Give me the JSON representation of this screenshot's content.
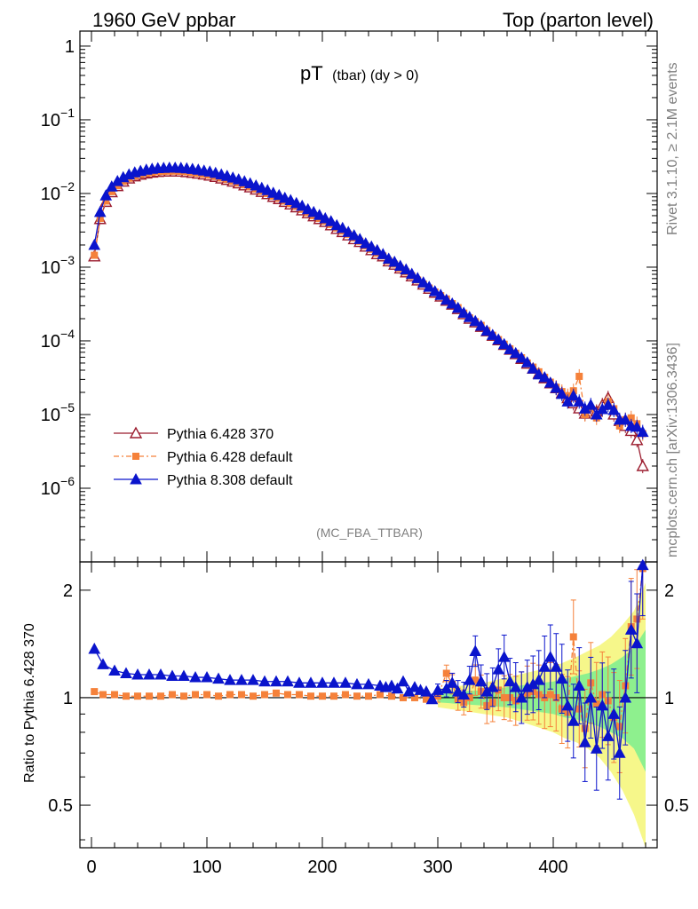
{
  "header": {
    "left": "1960 GeV ppbar",
    "right": "Top (parton level)"
  },
  "plot_title": {
    "main": "pT",
    "sub": "(tbar) (dy > 0)"
  },
  "side_labels": {
    "rivet": "Rivet 3.1.10, ≥ 2.1M events",
    "mcplots": "mcplots.cern.ch [arXiv:1306.3436]"
  },
  "watermark": "(MC_FBA_TTBAR)",
  "ratio_ylabel": "Ratio to Pythia 6.428 370",
  "colors": {
    "p6_370": "#9b1c2e",
    "p6_def": "#f5813a",
    "p8_def": "#0a14cc",
    "band_green": "#8ef08e",
    "band_yellow": "#f6f78a"
  },
  "chart_data": [
    {
      "type": "line",
      "yscale": "log",
      "xlim": [
        -10,
        490
      ],
      "ylim": [
        1e-07,
        1.6
      ],
      "ytick_labels": [
        "1",
        "10^-1",
        "10^-2",
        "10^-3",
        "10^-4",
        "10^-5",
        "10^-6"
      ],
      "legend_position": "lower-left",
      "x": [
        2.5,
        7.5,
        12.5,
        17.5,
        22.5,
        27.5,
        32.5,
        37.5,
        42.5,
        47.5,
        52.5,
        57.5,
        62.5,
        67.5,
        72.5,
        77.5,
        82.5,
        87.5,
        92.5,
        97.5,
        102.5,
        107.5,
        112.5,
        117.5,
        122.5,
        127.5,
        132.5,
        137.5,
        142.5,
        147.5,
        152.5,
        157.5,
        162.5,
        167.5,
        172.5,
        177.5,
        182.5,
        187.5,
        192.5,
        197.5,
        202.5,
        207.5,
        212.5,
        217.5,
        222.5,
        227.5,
        232.5,
        237.5,
        242.5,
        247.5,
        252.5,
        257.5,
        262.5,
        267.5,
        272.5,
        277.5,
        282.5,
        287.5,
        292.5,
        297.5,
        302.5,
        307.5,
        312.5,
        317.5,
        322.5,
        327.5,
        332.5,
        337.5,
        342.5,
        347.5,
        352.5,
        357.5,
        362.5,
        367.5,
        372.5,
        377.5,
        382.5,
        387.5,
        392.5,
        397.5,
        402.5,
        407.5,
        412.5,
        417.5,
        422.5,
        427.5,
        432.5,
        437.5,
        442.5,
        447.5,
        452.5,
        457.5,
        462.5,
        467.5,
        472.5,
        477.5
      ],
      "series": [
        {
          "name": "Pythia 6.428 370",
          "marker": "open-triangle",
          "values": [
            0.0014,
            0.0045,
            0.0077,
            0.0104,
            0.0126,
            0.0145,
            0.016,
            0.0171,
            0.018,
            0.0187,
            0.0192,
            0.0196,
            0.0198,
            0.0199,
            0.0199,
            0.0198,
            0.0195,
            0.0191,
            0.0186,
            0.0181,
            0.0175,
            0.0168,
            0.016,
            0.0153,
            0.0145,
            0.0137,
            0.0129,
            0.0121,
            0.0113,
            0.0105,
            0.0098,
            0.009,
            0.0084,
            0.0077,
            0.0071,
            0.0065,
            0.0059,
            0.0054,
            0.0049,
            0.0045,
            0.0041,
            0.0037,
            0.0033,
            0.003,
            0.0027,
            0.0024,
            0.0022,
            0.0019,
            0.0017,
            0.0015,
            0.0014,
            0.0012,
            0.00108,
            0.00096,
            0.00085,
            0.00075,
            0.00066,
            0.00058,
            0.00051,
            0.00045,
            0.0004,
            0.00035,
            0.00031,
            0.00027,
            0.00023,
            0.0002,
            0.000178,
            0.000155,
            0.000135,
            0.000117,
            0.000102,
            8.8e-05,
            7.6e-05,
            6.6e-05,
            5.7e-05,
            4.9e-05,
            4.2e-05,
            3.6e-05,
            3.1e-05,
            2.65e-05,
            2.28e-05,
            1.95e-05,
            1.67e-05,
            1.42e-05,
            1.21e-05,
            1.03e-05,
            1.25e-05,
            1.1e-05,
            1.35e-05,
            1.68e-05,
            1e-05,
            8.2e-06,
            7e-06,
            6e-06,
            4.5e-06,
            2e-06
          ]
        },
        {
          "name": "Pythia 6.428 default",
          "marker": "filled-square",
          "values": [
            0.00145,
            0.0046,
            0.0079,
            0.0106,
            0.0128,
            0.0147,
            0.0161,
            0.0173,
            0.0182,
            0.0189,
            0.0194,
            0.0198,
            0.02,
            0.0201,
            0.0201,
            0.02,
            0.0197,
            0.0193,
            0.0188,
            0.0183,
            0.0177,
            0.017,
            0.0162,
            0.0155,
            0.0147,
            0.0139,
            0.0131,
            0.0123,
            0.0115,
            0.0107,
            0.01,
            0.0092,
            0.0086,
            0.0079,
            0.0073,
            0.0067,
            0.0061,
            0.0055,
            0.005,
            0.0046,
            0.0042,
            0.0038,
            0.0034,
            0.0031,
            0.0028,
            0.0025,
            0.00225,
            0.00195,
            0.00175,
            0.00155,
            0.00142,
            0.00122,
            0.0011,
            0.00097,
            0.00086,
            0.00076,
            0.00067,
            0.00059,
            0.00052,
            0.00046,
            0.00041,
            0.00037,
            0.00032,
            0.000282,
            0.000238,
            0.000205,
            0.000182,
            0.000162,
            0.000138,
            0.000119,
            0.000104,
            9e-05,
            7.8e-05,
            6.8e-05,
            5.9e-05,
            5e-05,
            4.4e-05,
            3.8e-05,
            3.2e-05,
            2.75e-05,
            2.35e-05,
            2.05e-05,
            1.8e-05,
            2.1e-05,
            3.3e-05,
            1e-05,
            1.2e-05,
            9e-06,
            1.15e-05,
            1.5e-05,
            1.2e-05,
            7e-06,
            8.5e-06,
            9e-06,
            7.5e-06,
            5.5e-06
          ]
        },
        {
          "name": "Pythia 8.308 default",
          "marker": "filled-triangle",
          "values": [
            0.002,
            0.0056,
            0.0094,
            0.0124,
            0.0147,
            0.0166,
            0.0181,
            0.0193,
            0.0202,
            0.021,
            0.0216,
            0.022,
            0.0222,
            0.0223,
            0.0223,
            0.0222,
            0.0219,
            0.0215,
            0.021,
            0.0204,
            0.0198,
            0.019,
            0.0181,
            0.0173,
            0.0164,
            0.0155,
            0.0146,
            0.0137,
            0.0128,
            0.0119,
            0.0111,
            0.0102,
            0.0095,
            0.0087,
            0.0081,
            0.0074,
            0.0068,
            0.0061,
            0.0056,
            0.0051,
            0.0046,
            0.0042,
            0.0037,
            0.0034,
            0.003,
            0.0027,
            0.0024,
            0.0021,
            0.0019,
            0.0017,
            0.0015,
            0.0013,
            0.00118,
            0.00104,
            0.00093,
            0.00081,
            0.00071,
            0.00062,
            0.00054,
            0.00047,
            0.00042,
            0.00036,
            0.00032,
            0.00028,
            0.00024,
            0.00021,
            0.000185,
            0.00016,
            0.000137,
            0.00012,
            0.000104,
            9e-05,
            7.7e-05,
            6.8e-05,
            5.9e-05,
            5.1e-05,
            4.2e-05,
            3.5e-05,
            3.2e-05,
            2.7e-05,
            2.3e-05,
            1.9e-05,
            1.5e-05,
            1.8e-05,
            1.5e-05,
            1.2e-05,
            1.35e-05,
            1e-05,
            1.18e-05,
            1.35e-05,
            1.15e-05,
            8.5e-06,
            8.5e-06,
            7e-06,
            6.8e-06,
            5.8e-06
          ]
        }
      ]
    },
    {
      "type": "line",
      "yscale": "log",
      "xlim": [
        -10,
        490
      ],
      "ylim": [
        0.38,
        2.4
      ],
      "xticks": [
        0,
        100,
        200,
        300,
        400
      ],
      "yticks": [
        0.5,
        1,
        2
      ],
      "ylabel": "Ratio to Pythia 6.428 370",
      "bands": {
        "x": [
          300,
          310,
          320,
          330,
          340,
          350,
          360,
          370,
          380,
          390,
          400,
          410,
          420,
          430,
          440,
          450,
          460,
          470,
          480
        ],
        "green_lo": [
          0.97,
          0.965,
          0.96,
          0.955,
          0.95,
          0.945,
          0.94,
          0.93,
          0.92,
          0.91,
          0.9,
          0.88,
          0.87,
          0.85,
          0.83,
          0.8,
          0.77,
          0.72,
          0.62
        ],
        "green_hi": [
          1.03,
          1.035,
          1.04,
          1.045,
          1.05,
          1.06,
          1.07,
          1.08,
          1.09,
          1.1,
          1.11,
          1.13,
          1.15,
          1.17,
          1.2,
          1.24,
          1.3,
          1.38,
          1.55
        ],
        "yellow_lo": [
          0.94,
          0.93,
          0.92,
          0.91,
          0.9,
          0.89,
          0.88,
          0.86,
          0.84,
          0.82,
          0.8,
          0.77,
          0.75,
          0.72,
          0.68,
          0.62,
          0.55,
          0.47,
          0.35
        ],
        "yellow_hi": [
          1.06,
          1.07,
          1.08,
          1.09,
          1.1,
          1.12,
          1.14,
          1.16,
          1.18,
          1.2,
          1.22,
          1.26,
          1.3,
          1.35,
          1.4,
          1.48,
          1.6,
          1.75,
          2.1
        ]
      },
      "series": [
        {
          "name": "Pythia 6.428 370",
          "values_const": 1.0
        },
        {
          "name": "Pythia 6.428 default",
          "x": [
            2.5,
            10,
            20,
            30,
            40,
            50,
            60,
            70,
            80,
            90,
            100,
            110,
            120,
            130,
            140,
            150,
            160,
            170,
            180,
            190,
            200,
            210,
            220,
            230,
            240,
            250,
            260,
            270,
            280,
            290,
            300,
            307.5,
            312.5,
            317.5,
            322.5,
            327.5,
            332.5,
            337.5,
            342.5,
            347.5,
            352.5,
            357.5,
            362.5,
            367.5,
            372.5,
            377.5,
            382.5,
            387.5,
            392.5,
            397.5,
            402.5,
            407.5,
            412.5,
            417.5,
            422.5,
            427.5,
            432.5,
            437.5,
            442.5,
            447.5,
            452.5,
            457.5,
            462.5,
            467.5,
            472.5,
            477.5
          ],
          "values": [
            1.04,
            1.02,
            1.02,
            1.01,
            1.01,
            1.01,
            1.01,
            1.02,
            1.01,
            1.02,
            1.02,
            1.01,
            1.02,
            1.02,
            1.01,
            1.02,
            1.03,
            1.02,
            1.02,
            1.01,
            1.01,
            1.01,
            1.02,
            1.01,
            1.01,
            1.02,
            1.01,
            1.0,
            1.0,
            0.99,
            1.01,
            1.17,
            1.09,
            0.99,
            0.97,
            1.0,
            1.12,
            1.04,
            0.95,
            0.97,
            1.05,
            1.0,
            1.0,
            0.98,
            1.0,
            1.03,
            1.04,
            1.02,
            1.0,
            1.02,
            1.0,
            0.93,
            0.91,
            1.48,
            0.93,
            0.82,
            1.1,
            0.96,
            1.02,
            0.98,
            0.88,
            0.83,
            1.08,
            1.58,
            1.66,
            2.3
          ]
        },
        {
          "name": "Pythia 8.308 default",
          "x": [
            2.5,
            10,
            20,
            30,
            40,
            50,
            60,
            70,
            80,
            90,
            100,
            110,
            120,
            130,
            140,
            150,
            160,
            170,
            180,
            190,
            200,
            210,
            220,
            230,
            240,
            250,
            255,
            260,
            265,
            270,
            275,
            280,
            285,
            290,
            295,
            300,
            307.5,
            312.5,
            317.5,
            322.5,
            327.5,
            332.5,
            337.5,
            342.5,
            347.5,
            352.5,
            357.5,
            362.5,
            367.5,
            372.5,
            377.5,
            382.5,
            387.5,
            392.5,
            397.5,
            402.5,
            407.5,
            412.5,
            417.5,
            422.5,
            427.5,
            432.5,
            437.5,
            442.5,
            447.5,
            452.5,
            457.5,
            462.5,
            467.5,
            472.5,
            477.5
          ],
          "values": [
            1.37,
            1.24,
            1.19,
            1.17,
            1.16,
            1.16,
            1.16,
            1.15,
            1.15,
            1.14,
            1.14,
            1.13,
            1.12,
            1.12,
            1.12,
            1.11,
            1.11,
            1.11,
            1.1,
            1.1,
            1.1,
            1.1,
            1.1,
            1.09,
            1.09,
            1.08,
            1.07,
            1.08,
            1.06,
            1.11,
            1.04,
            1.07,
            1.05,
            1.04,
            0.99,
            1.05,
            1.06,
            1.1,
            1.04,
            1.02,
            1.12,
            1.35,
            1.11,
            1.04,
            1.07,
            1.2,
            1.3,
            1.11,
            1.07,
            1.0,
            1.07,
            1.09,
            1.12,
            1.22,
            1.3,
            1.22,
            1.13,
            0.95,
            0.86,
            1.08,
            0.75,
            1.0,
            0.72,
            0.95,
            0.78,
            0.9,
            0.7,
            1.0,
            1.55,
            1.42,
            2.35
          ]
        }
      ]
    }
  ]
}
